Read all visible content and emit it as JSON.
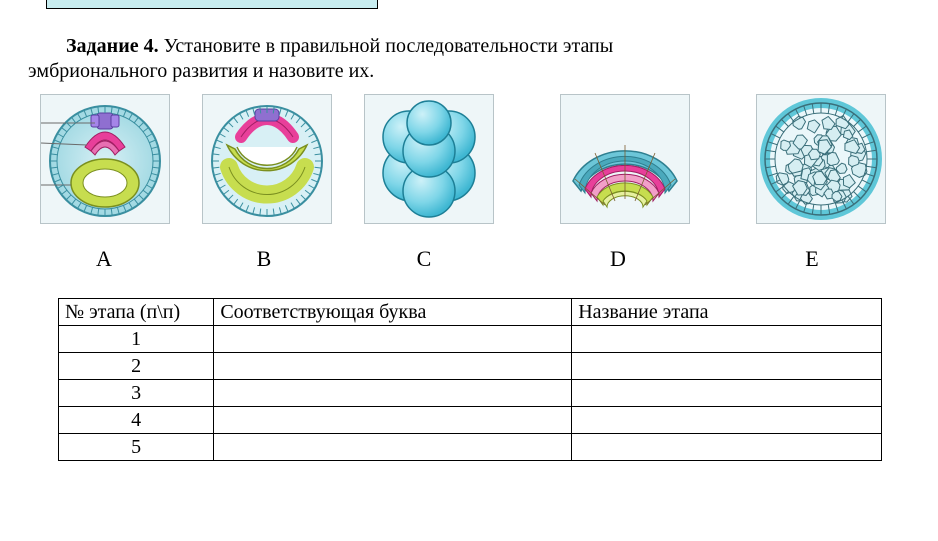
{
  "task": {
    "title_bold": "Задание 4.",
    "text_after_bold": " Установите в правильной последовательности  этапы",
    "text_line2": "эмбрионального развития и назовите их."
  },
  "images": {
    "labels": [
      "A",
      "B",
      "C",
      "D",
      "E"
    ],
    "box_border": "#b8c4c8",
    "box_bg": "#eef6f8",
    "A": {
      "outer_ring": "#6cc6d8",
      "inner_cells": "#c7dd4f",
      "crest_cells": "#e83f9a",
      "top_cells": "#8f6fd0",
      "line": "#6a6a6a"
    },
    "B": {
      "outer_ring": "#6cc6d8",
      "inner_yellow": "#c7dd4f",
      "pink_arc": "#e83f9a",
      "top_purple": "#8f6fd0",
      "cavity": "#ffffff"
    },
    "C": {
      "sphere_light": "#9fe2f2",
      "sphere_dark": "#3fb7d2",
      "shade": "#1d7f96"
    },
    "D": {
      "outer": "#6cc6d8",
      "outer2": "#4aa9bc",
      "mid": "#e83f9a",
      "inner": "#c7dd4f",
      "line": "#7a5c2e"
    },
    "E": {
      "ring": "#5fc7d8",
      "cell_fill": "#d6eef2",
      "cell_line": "#3a6f7a",
      "cavity": "#eaf7fa"
    }
  },
  "table": {
    "headers": [
      "№ этапа (п\\п)",
      "Соответствующая буква",
      "Название этапа"
    ],
    "rows": [
      {
        "num": "1",
        "letter": "",
        "name": ""
      },
      {
        "num": "2",
        "letter": "",
        "name": ""
      },
      {
        "num": "3",
        "letter": "",
        "name": ""
      },
      {
        "num": "4",
        "letter": "",
        "name": ""
      },
      {
        "num": "5",
        "letter": "",
        "name": ""
      }
    ]
  },
  "colors": {
    "text": "#000000",
    "page_bg": "#ffffff",
    "table_border": "#000000",
    "fragment_bg": "#c8edf0"
  },
  "typography": {
    "body_font": "Times New Roman",
    "body_size_pt": 15,
    "label_size_pt": 16
  }
}
